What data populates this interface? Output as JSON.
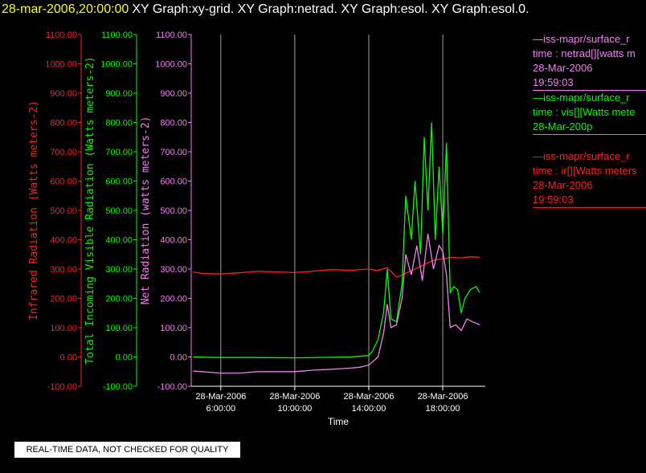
{
  "header": {
    "time": "28-mar-2006,20:00:00",
    "titles": "XY Graph:xy-grid.  XY Graph:netrad.  XY Graph:esol.  XY Graph:esol.0."
  },
  "legend": [
    {
      "lines": [
        "—iss-mapr/surface_r",
        "time : netrad[][watts m",
        "28-Mar-2006",
        "19:59:03"
      ],
      "color": "#ee82ee"
    },
    {
      "lines": [
        "—iss-mapr/surface_r",
        "time : vis[][Watts mete",
        "28-Mar-200p"
      ],
      "color": "#00ff00"
    },
    {
      "lines": [
        "—iss-mapr/surface_r",
        "time : ir[][Watts meters",
        "28-Mar-2006",
        "19:59:03"
      ],
      "color": "#ff2020"
    }
  ],
  "quality_notice": "REAL-TIME DATA, NOT CHECKED FOR QUALITY",
  "chart_data": {
    "type": "line",
    "xlabel": "Time",
    "x_ticks": [
      {
        "date": "28-Mar-2006",
        "time": "6:00:00"
      },
      {
        "date": "28-Mar-2006",
        "time": "10:00:00"
      },
      {
        "date": "28-Mar-2006",
        "time": "14:00:00"
      },
      {
        "date": "28-Mar-2006",
        "time": "18:00:00"
      }
    ],
    "x_tick_hours": [
      6,
      10,
      14,
      18
    ],
    "xlim_hours": [
      4.4,
      20.3
    ],
    "ylim": [
      -100,
      1100
    ],
    "y_ticks": [
      "-100.00",
      "0.00",
      "100.00",
      "200.00",
      "300.00",
      "400.00",
      "500.00",
      "600.00",
      "700.00",
      "800.00",
      "900.00",
      "1000.00",
      "1100.00"
    ],
    "axes": [
      {
        "label": "Infrared Radiation (Watts meters-2)",
        "color": "#ff2020"
      },
      {
        "label": "Total Incoming Visible Radiation (Watts meters-2)",
        "color": "#00ff00"
      },
      {
        "label": "Net Radiation (watts meters-2)",
        "color": "#ee82ee"
      }
    ],
    "grid": true,
    "series": [
      {
        "color": "#ff2020",
        "x": [
          4.5,
          5,
          6,
          7,
          8,
          9,
          10,
          11,
          12,
          13,
          14,
          14.5,
          15,
          15.5,
          16,
          16.5,
          17,
          17.5,
          18,
          18.5,
          19,
          19.5,
          20
        ],
        "y": [
          290,
          285,
          283,
          287,
          292,
          290,
          288,
          293,
          298,
          296,
          300,
          295,
          305,
          272,
          285,
          300,
          315,
          330,
          335,
          340,
          338,
          342,
          340
        ]
      },
      {
        "color": "#00ff00",
        "x": [
          4.5,
          6,
          8,
          10,
          12,
          13,
          14,
          14.2,
          14.5,
          14.8,
          15,
          15.2,
          15.5,
          15.8,
          16,
          16.3,
          16.5,
          16.8,
          17,
          17.2,
          17.4,
          17.6,
          17.8,
          18,
          18.2,
          18.4,
          18.6,
          18.8,
          19,
          19.2,
          19.5,
          19.8,
          20
        ],
        "y": [
          0,
          -2,
          -2,
          -3,
          -1,
          0,
          5,
          20,
          60,
          150,
          300,
          130,
          120,
          250,
          550,
          400,
          600,
          350,
          750,
          500,
          800,
          400,
          650,
          420,
          730,
          220,
          240,
          230,
          150,
          200,
          230,
          240,
          220
        ]
      },
      {
        "color": "#ee82ee",
        "x": [
          4.5,
          5,
          6,
          7,
          8,
          9,
          10,
          11,
          12,
          12.5,
          13,
          13.5,
          14,
          14.5,
          14.8,
          15,
          15.2,
          15.5,
          15.8,
          16,
          16.3,
          16.6,
          16.9,
          17.2,
          17.5,
          17.8,
          18,
          18.2,
          18.4,
          18.7,
          19,
          19.3,
          19.6,
          20
        ],
        "y": [
          -48,
          -50,
          -55,
          -55,
          -50,
          -50,
          -50,
          -45,
          -42,
          -40,
          -38,
          -35,
          -28,
          0,
          80,
          180,
          100,
          110,
          200,
          350,
          280,
          380,
          260,
          420,
          300,
          380,
          360,
          280,
          100,
          110,
          90,
          130,
          120,
          110
        ]
      }
    ]
  }
}
